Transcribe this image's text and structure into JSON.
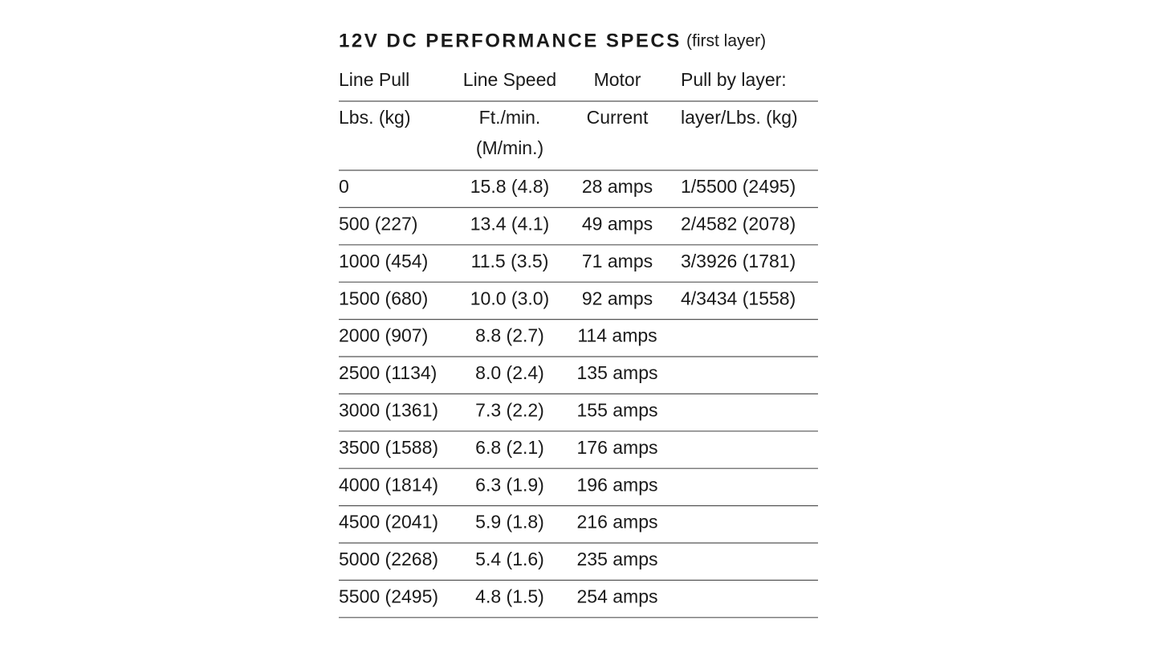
{
  "title": "12V DC PERFORMANCE SPECS",
  "subtitle": "(first layer)",
  "table": {
    "header": [
      "Line Pull",
      "Line Speed",
      "Motor",
      "Pull by layer:"
    ],
    "units": [
      "Lbs. (kg)",
      [
        "Ft./min.",
        "(M/min.)"
      ],
      "Current",
      "layer/Lbs. (kg)"
    ],
    "rows": [
      [
        "0",
        "15.8 (4.8)",
        "28 amps",
        "1/5500 (2495)"
      ],
      [
        "500 (227)",
        "13.4 (4.1)",
        "49 amps",
        "2/4582 (2078)"
      ],
      [
        "1000 (454)",
        "11.5 (3.5)",
        "71 amps",
        "3/3926 (1781)"
      ],
      [
        "1500 (680)",
        "10.0 (3.0)",
        "92 amps",
        "4/3434 (1558)"
      ],
      [
        "2000 (907)",
        "8.8 (2.7)",
        "114 amps"
      ],
      [
        "2500 (1134)",
        "8.0 (2.4)",
        "135 amps"
      ],
      [
        "3000 (1361)",
        "7.3 (2.2)",
        "155 amps"
      ],
      [
        "3500 (1588)",
        "6.8 (2.1)",
        "176 amps"
      ],
      [
        "4000 (1814)",
        "6.3 (1.9)",
        "196 amps"
      ],
      [
        "4500 (2041)",
        "5.9 (1.8)",
        "216 amps"
      ],
      [
        "5000 (2268)",
        "5.4 (1.6)",
        "235 amps"
      ],
      [
        "5500 (2495)",
        "4.8 (1.5)",
        "254 amps"
      ]
    ]
  }
}
